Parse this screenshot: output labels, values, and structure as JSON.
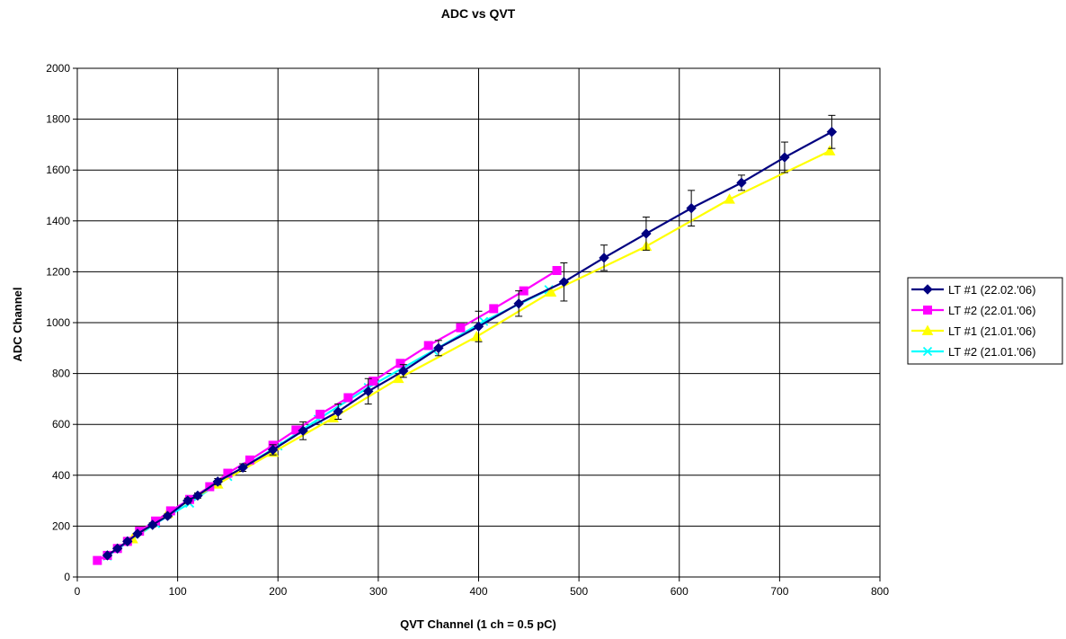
{
  "chart_data": {
    "type": "line",
    "title": "ADC vs QVT",
    "xlabel": "QVT Channel (1 ch = 0.5 pC)",
    "ylabel": "ADC Channel",
    "xlim": [
      0,
      800
    ],
    "ylim": [
      0,
      2000
    ],
    "xticks": [
      0,
      100,
      200,
      300,
      400,
      500,
      600,
      700,
      800
    ],
    "yticks": [
      0,
      200,
      400,
      600,
      800,
      1000,
      1200,
      1400,
      1600,
      1800,
      2000
    ],
    "grid": true,
    "legend_position": "right",
    "series": [
      {
        "name": "LT #1 (22.02.'06)",
        "color": "#000080",
        "marker": "diamond",
        "points": [
          [
            30,
            85
          ],
          [
            40,
            112
          ],
          [
            50,
            140
          ],
          [
            60,
            170
          ],
          [
            75,
            205
          ],
          [
            90,
            240
          ],
          [
            110,
            300
          ],
          [
            120,
            320
          ],
          [
            140,
            375
          ],
          [
            165,
            430
          ],
          [
            195,
            500
          ],
          [
            225,
            575
          ],
          [
            260,
            650
          ],
          [
            290,
            730
          ],
          [
            325,
            810
          ],
          [
            360,
            900
          ],
          [
            400,
            985
          ],
          [
            440,
            1075
          ],
          [
            485,
            1160
          ],
          [
            525,
            1255
          ],
          [
            567,
            1350
          ],
          [
            612,
            1450
          ],
          [
            662,
            1550
          ],
          [
            705,
            1650
          ],
          [
            752,
            1750
          ]
        ],
        "err": [
          5,
          5,
          5,
          5,
          8,
          8,
          10,
          10,
          12,
          15,
          20,
          35,
          30,
          50,
          25,
          30,
          60,
          50,
          75,
          50,
          65,
          70,
          30,
          60,
          65
        ]
      },
      {
        "name": "LT #2 (22.01.'06)",
        "color": "#FF00FF",
        "marker": "square",
        "points": [
          [
            20,
            65
          ],
          [
            30,
            85
          ],
          [
            40,
            112
          ],
          [
            50,
            140
          ],
          [
            62,
            180
          ],
          [
            78,
            220
          ],
          [
            93,
            260
          ],
          [
            112,
            305
          ],
          [
            132,
            355
          ],
          [
            150,
            408
          ],
          [
            172,
            460
          ],
          [
            195,
            518
          ],
          [
            218,
            578
          ],
          [
            242,
            640
          ],
          [
            270,
            705
          ],
          [
            295,
            770
          ],
          [
            322,
            840
          ],
          [
            350,
            910
          ],
          [
            382,
            980
          ],
          [
            415,
            1055
          ],
          [
            445,
            1125
          ],
          [
            478,
            1205
          ]
        ],
        "err": [
          0,
          0,
          0,
          0,
          0,
          0,
          0,
          0,
          0,
          0,
          0,
          0,
          0,
          0,
          0,
          0,
          0,
          0,
          0,
          0,
          0,
          0
        ]
      },
      {
        "name": "LT #1 (21.01.'06)",
        "color": "#FFFF00",
        "marker": "triangle",
        "points": [
          [
            55,
            150
          ],
          [
            90,
            250
          ],
          [
            140,
            365
          ],
          [
            195,
            490
          ],
          [
            255,
            625
          ],
          [
            320,
            780
          ],
          [
            398,
            945
          ],
          [
            472,
            1120
          ],
          [
            567,
            1300
          ],
          [
            650,
            1485
          ],
          [
            750,
            1675
          ]
        ],
        "err": [
          0,
          0,
          0,
          0,
          0,
          0,
          0,
          0,
          0,
          0,
          0
        ]
      },
      {
        "name": "LT #2 (21.01.'06)",
        "color": "#00FFFF",
        "marker": "x",
        "points": [
          [
            30,
            82
          ],
          [
            78,
            210
          ],
          [
            112,
            290
          ],
          [
            150,
            395
          ],
          [
            200,
            515
          ],
          [
            240,
            620
          ],
          [
            290,
            745
          ],
          [
            355,
            890
          ],
          [
            405,
            1005
          ],
          [
            470,
            1130
          ]
        ],
        "err": [
          0,
          0,
          0,
          0,
          0,
          0,
          0,
          0,
          0,
          0
        ]
      }
    ]
  }
}
